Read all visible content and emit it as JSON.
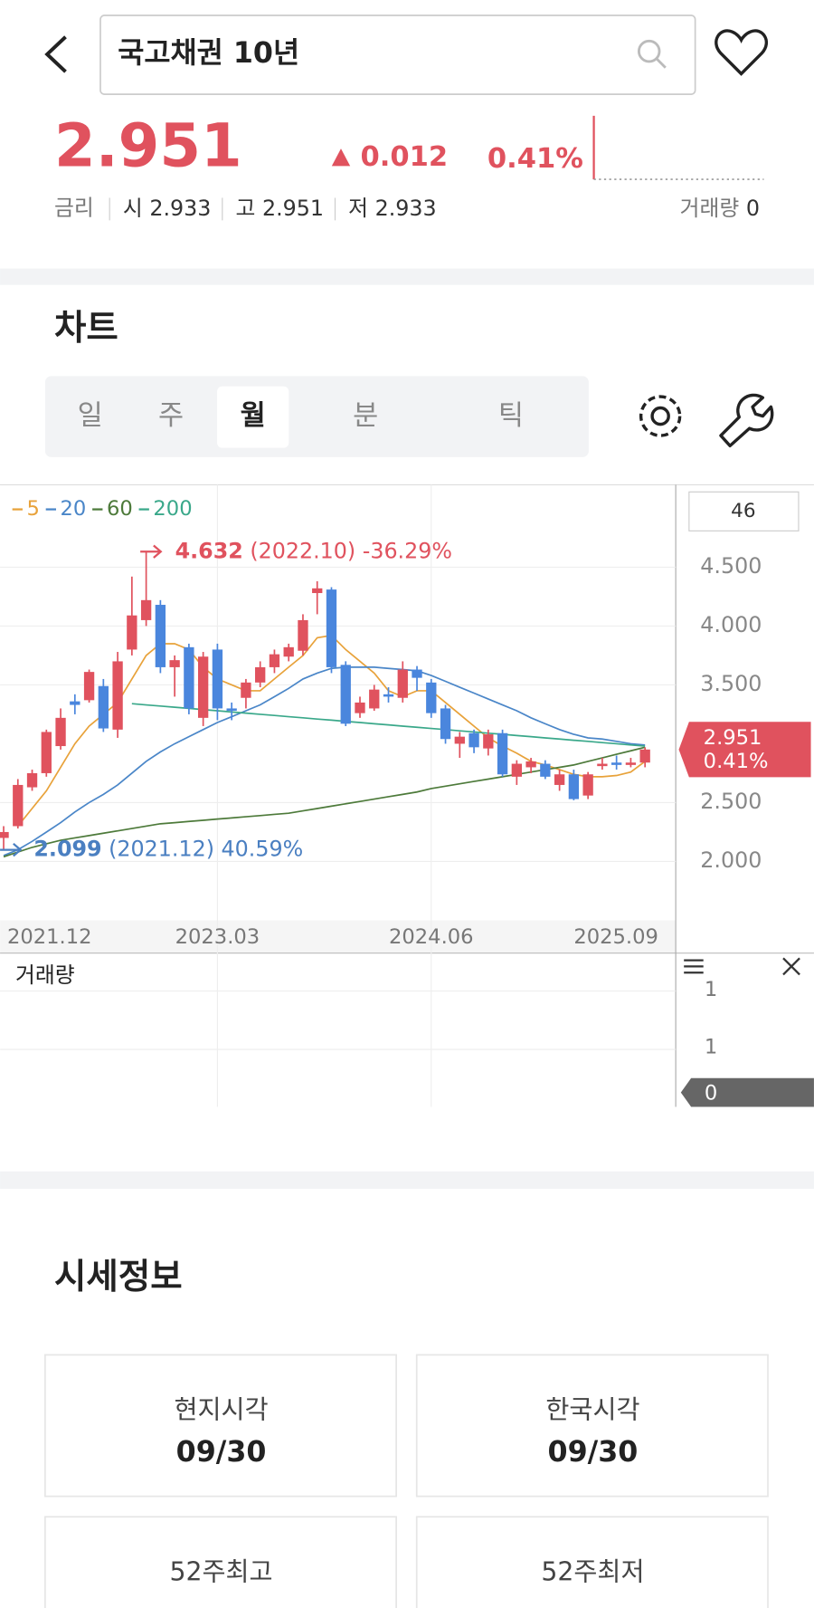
{
  "header": {
    "title": "국고채권 10년"
  },
  "quote": {
    "price": "2.951",
    "change": "0.012",
    "change_pct": "0.41%",
    "rate_label": "금리",
    "stats": [
      {
        "label": "시",
        "value": "2.933"
      },
      {
        "label": "고",
        "value": "2.951"
      },
      {
        "label": "저",
        "value": "2.933"
      }
    ],
    "volume_label": "거래량",
    "volume": "0"
  },
  "chart_section": {
    "title": "차트",
    "tabs": [
      "일",
      "주",
      "월",
      "분",
      "틱"
    ],
    "selected_tab": 2,
    "count": "46"
  },
  "chart_data": {
    "type": "candlestick",
    "categories": [
      "2021.12",
      null,
      null,
      null,
      null,
      null,
      null,
      null,
      null,
      null,
      null,
      null,
      null,
      null,
      null,
      "2023.03",
      null,
      null,
      null,
      null,
      null,
      null,
      null,
      null,
      null,
      null,
      null,
      null,
      null,
      null,
      "2024.06",
      null,
      null,
      null,
      null,
      null,
      null,
      null,
      null,
      null,
      null,
      null,
      null,
      null,
      null,
      "2025.09"
    ],
    "open": [
      2.2,
      2.3,
      2.63,
      2.75,
      2.98,
      3.36,
      3.37,
      3.49,
      3.12,
      3.8,
      4.05,
      4.18,
      3.65,
      3.82,
      3.22,
      3.8,
      3.3,
      3.39,
      3.52,
      3.65,
      3.74,
      3.79,
      4.28,
      4.31,
      3.67,
      3.26,
      3.3,
      3.42,
      3.39,
      3.63,
      3.52,
      3.3,
      3.0,
      3.09,
      2.96,
      3.09,
      2.72,
      2.8,
      2.83,
      2.65,
      2.74,
      2.56,
      2.81,
      2.84,
      2.82,
      2.84
    ],
    "high": [
      2.3,
      2.7,
      2.78,
      3.12,
      3.3,
      3.42,
      3.63,
      3.55,
      3.78,
      4.42,
      4.632,
      4.22,
      3.75,
      3.85,
      3.78,
      3.85,
      3.35,
      3.55,
      3.7,
      3.8,
      3.85,
      4.1,
      4.38,
      4.33,
      3.7,
      3.4,
      3.5,
      3.48,
      3.7,
      3.66,
      3.55,
      3.33,
      3.1,
      3.12,
      3.12,
      3.12,
      2.86,
      2.88,
      2.86,
      2.78,
      2.78,
      2.76,
      2.88,
      2.9,
      2.88,
      2.97
    ],
    "low": [
      2.099,
      2.28,
      2.6,
      2.72,
      2.95,
      3.25,
      3.35,
      3.1,
      3.05,
      3.75,
      4.0,
      3.6,
      3.4,
      3.25,
      3.15,
      3.2,
      3.2,
      3.3,
      3.48,
      3.6,
      3.7,
      3.75,
      4.1,
      3.6,
      3.15,
      3.22,
      3.28,
      3.35,
      3.35,
      3.45,
      3.22,
      3.0,
      2.88,
      2.92,
      2.9,
      2.72,
      2.65,
      2.75,
      2.7,
      2.6,
      2.52,
      2.53,
      2.78,
      2.78,
      2.8,
      2.8
    ],
    "close": [
      2.25,
      2.65,
      2.75,
      3.1,
      3.22,
      3.33,
      3.61,
      3.13,
      3.7,
      4.09,
      4.22,
      3.65,
      3.71,
      3.3,
      3.74,
      3.3,
      3.28,
      3.52,
      3.65,
      3.76,
      3.82,
      4.05,
      4.32,
      3.65,
      3.17,
      3.35,
      3.46,
      3.4,
      3.63,
      3.56,
      3.26,
      3.04,
      3.06,
      2.97,
      3.08,
      2.74,
      2.83,
      2.85,
      2.72,
      2.74,
      2.53,
      2.74,
      2.83,
      2.82,
      2.84,
      2.951
    ],
    "up_color": "#e0525e",
    "down_color": "#4a86dd",
    "ylim": [
      1.5,
      5.2
    ],
    "yticks": [
      {
        "value": 4.5,
        "label": "4.500"
      },
      {
        "value": 4.0,
        "label": "4.000"
      },
      {
        "value": 3.5,
        "label": "3.500"
      },
      {
        "value": 2.5,
        "label": "2.500"
      },
      {
        "value": 2.0,
        "label": "2.000"
      }
    ],
    "grid": true,
    "series": [
      {
        "name": "5",
        "color": "#e8a23a",
        "values": [
          null,
          2.3,
          2.45,
          2.6,
          2.8,
          3.0,
          3.15,
          3.25,
          3.35,
          3.55,
          3.75,
          3.85,
          3.85,
          3.8,
          3.65,
          3.55,
          3.5,
          3.45,
          3.45,
          3.55,
          3.65,
          3.75,
          3.9,
          3.92,
          3.8,
          3.7,
          3.6,
          3.45,
          3.4,
          3.45,
          3.45,
          3.35,
          3.25,
          3.15,
          3.05,
          2.98,
          2.92,
          2.85,
          2.82,
          2.78,
          2.74,
          2.72,
          2.72,
          2.73,
          2.76,
          2.85
        ]
      },
      {
        "name": "20",
        "color": "#4a86c8",
        "values": [
          2.05,
          2.1,
          2.17,
          2.25,
          2.33,
          2.42,
          2.5,
          2.57,
          2.65,
          2.75,
          2.85,
          2.93,
          3.0,
          3.06,
          3.12,
          3.18,
          3.23,
          3.28,
          3.33,
          3.4,
          3.47,
          3.55,
          3.6,
          3.64,
          3.65,
          3.65,
          3.65,
          3.64,
          3.63,
          3.62,
          3.58,
          3.53,
          3.48,
          3.43,
          3.38,
          3.33,
          3.28,
          3.22,
          3.17,
          3.12,
          3.08,
          3.05,
          3.04,
          3.02,
          3.0,
          2.99
        ]
      },
      {
        "name": "60",
        "color": "#4d7a3a",
        "values": [
          2.04,
          2.08,
          2.12,
          2.15,
          2.18,
          2.2,
          2.22,
          2.24,
          2.26,
          2.28,
          2.3,
          2.32,
          2.33,
          2.34,
          2.35,
          2.36,
          2.37,
          2.38,
          2.39,
          2.4,
          2.41,
          2.43,
          2.45,
          2.47,
          2.49,
          2.51,
          2.53,
          2.55,
          2.57,
          2.59,
          2.62,
          2.64,
          2.66,
          2.68,
          2.7,
          2.72,
          2.74,
          2.76,
          2.78,
          2.8,
          2.82,
          2.85,
          2.88,
          2.91,
          2.94,
          2.97
        ]
      },
      {
        "name": "200",
        "color": "#3aa88a",
        "values": [
          null,
          null,
          null,
          null,
          null,
          null,
          null,
          null,
          null,
          3.34,
          3.33,
          3.32,
          3.31,
          3.3,
          3.29,
          3.28,
          3.27,
          3.26,
          3.25,
          3.24,
          3.23,
          3.22,
          3.21,
          3.2,
          3.19,
          3.18,
          3.17,
          3.16,
          3.15,
          3.14,
          3.13,
          3.12,
          3.11,
          3.1,
          3.09,
          3.08,
          3.07,
          3.06,
          3.05,
          3.04,
          3.03,
          3.02,
          3.01,
          3.0,
          2.99,
          2.98
        ]
      }
    ],
    "high_note": {
      "value": 4.632,
      "label": "4.632",
      "date": "(2022.10)",
      "change": "-36.29%"
    },
    "low_note": {
      "value": 2.099,
      "label": "2.099",
      "date": "(2021.12)",
      "change": "40.59%"
    },
    "current_tag": {
      "value": 2.951,
      "label": "2.951",
      "change": "0.41%"
    }
  },
  "volume_pane": {
    "title": "거래량",
    "ticks": [
      "1",
      "1",
      "0"
    ]
  },
  "market_info": {
    "title": "시세정보",
    "cards": [
      {
        "label": "현지시각",
        "value": "09/30"
      },
      {
        "label": "한국시각",
        "value": "09/30"
      },
      {
        "label": "52주최고"
      },
      {
        "label": "52주최저"
      }
    ]
  }
}
